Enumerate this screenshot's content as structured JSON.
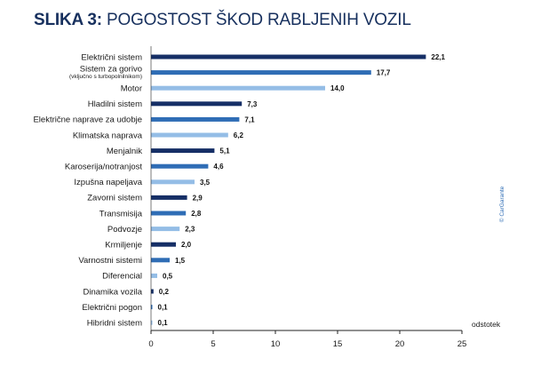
{
  "title": {
    "prefix": "SLIKA 3:",
    "text": "POGOSTOST ŠKOD RABLJENIH VOZIL"
  },
  "source": "© CarGarante",
  "colors": {
    "title": "#17305e",
    "dark": "#162f66",
    "mid": "#2f6db5",
    "light": "#94bde6",
    "axis": "#222222"
  },
  "chart_data": {
    "type": "bar",
    "orientation": "horizontal",
    "title": "SLIKA 3: POGOSTOST ŠKOD RABLJENIH VOZIL",
    "xlabel": "odstotek",
    "ylabel": "",
    "xlim": [
      0,
      25
    ],
    "xticks": [
      0,
      5,
      10,
      15,
      20,
      25
    ],
    "grid": false,
    "categories": [
      "Električni sistem",
      "Sistem za gorivo",
      "Motor",
      "Hladilni sistem",
      "Električne naprave za udobje",
      "Klimatska naprava",
      "Menjalnik",
      "Karoserija/notranjost",
      "Izpušna napeljava",
      "Zavorni sistem",
      "Transmisija",
      "Podvozje",
      "Krmiljenje",
      "Varnostni sistemi",
      "Diferencial",
      "Dinamika vozila",
      "Električni pogon",
      "Hibridni sistem"
    ],
    "category_sublabels": {
      "Sistem za gorivo": "(vključno s turbopolnilnikom)"
    },
    "values": [
      22.1,
      17.7,
      14.0,
      7.3,
      7.1,
      6.2,
      5.1,
      4.6,
      3.5,
      2.9,
      2.8,
      2.3,
      2.0,
      1.5,
      0.5,
      0.2,
      0.1,
      0.1
    ],
    "value_labels": [
      "22,1",
      "17,7",
      "14,0",
      "7,3",
      "7,1",
      "6,2",
      "5,1",
      "4,6",
      "3,5",
      "2,9",
      "2,8",
      "2,3",
      "2,0",
      "1,5",
      "0,5",
      "0,2",
      "0,1",
      "0,1"
    ],
    "tick_labels": [
      "0",
      "5",
      "10",
      "15",
      "20",
      "25"
    ],
    "bar_color_pattern": [
      "dark",
      "mid",
      "light"
    ]
  }
}
